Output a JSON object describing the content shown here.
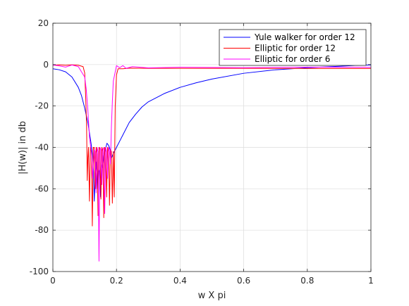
{
  "chart_data": {
    "type": "line",
    "xlabel": "w X pi",
    "ylabel": "|H(w)| in db",
    "xlim": [
      0,
      1
    ],
    "ylim": [
      -100,
      20
    ],
    "xticks": [
      "0",
      "0.2",
      "0.4",
      "0.6",
      "0.8",
      "1"
    ],
    "yticks": [
      "20",
      "0",
      "-20",
      "-40",
      "-60",
      "-80",
      "-100"
    ],
    "grid": true,
    "legend_position": "top-right",
    "series": [
      {
        "name": "Yule walker for order 12",
        "color": "#0000ff",
        "x": [
          0,
          0.02,
          0.04,
          0.06,
          0.08,
          0.09,
          0.1,
          0.11,
          0.115,
          0.12,
          0.125,
          0.128,
          0.13,
          0.133,
          0.136,
          0.14,
          0.143,
          0.146,
          0.15,
          0.153,
          0.156,
          0.16,
          0.165,
          0.17,
          0.175,
          0.18,
          0.185,
          0.19,
          0.2,
          0.21,
          0.22,
          0.24,
          0.26,
          0.28,
          0.3,
          0.35,
          0.4,
          0.45,
          0.5,
          0.6,
          0.7,
          0.8,
          0.9,
          0.95,
          1.0
        ],
        "y": [
          -2,
          -2.5,
          -3.5,
          -6,
          -11,
          -15,
          -21,
          -28,
          -33,
          -38,
          -44,
          -52,
          -66,
          -55,
          -47,
          -60,
          -50,
          -52,
          -64,
          -48,
          -50,
          -44,
          -41,
          -38,
          -39,
          -41,
          -45,
          -43,
          -40,
          -37,
          -34,
          -28,
          -24,
          -20.5,
          -18,
          -14,
          -11,
          -8.8,
          -7,
          -4.2,
          -2.5,
          -1.5,
          -0.8,
          -0.4,
          -0.2
        ]
      },
      {
        "name": "Elliptic for order 12",
        "color": "#ff0000",
        "x": [
          0,
          0.02,
          0.04,
          0.06,
          0.08,
          0.095,
          0.1,
          0.103,
          0.106,
          0.108,
          0.11,
          0.112,
          0.115,
          0.118,
          0.121,
          0.124,
          0.127,
          0.13,
          0.133,
          0.136,
          0.139,
          0.142,
          0.145,
          0.148,
          0.151,
          0.154,
          0.157,
          0.16,
          0.163,
          0.166,
          0.169,
          0.172,
          0.175,
          0.178,
          0.181,
          0.184,
          0.187,
          0.19,
          0.193,
          0.196,
          0.2,
          0.205,
          0.21,
          0.22,
          0.24,
          0.3,
          0.4,
          0.6,
          0.8,
          1.0
        ],
        "y": [
          -0.3,
          -0.1,
          -0.3,
          -0.1,
          -0.3,
          -1,
          -4,
          -15,
          -30,
          -56,
          -45,
          -40,
          -66,
          -40,
          -42,
          -78,
          -40,
          -40,
          -60,
          -40,
          -43,
          -73,
          -40,
          -41,
          -65,
          -40,
          -42,
          -74,
          -40,
          -41,
          -64,
          -40,
          -42,
          -68,
          -41,
          -42,
          -67,
          -42,
          -64,
          -20,
          -5,
          -2,
          -2,
          -2,
          -1.7,
          -1.8,
          -1.8,
          -1.8,
          -1.9,
          -1.9
        ]
      },
      {
        "name": "Elliptic for order 6",
        "color": "#ff00ff",
        "x": [
          0,
          0.02,
          0.04,
          0.06,
          0.08,
          0.1,
          0.105,
          0.11,
          0.115,
          0.12,
          0.125,
          0.13,
          0.133,
          0.136,
          0.139,
          0.142,
          0.145,
          0.148,
          0.151,
          0.154,
          0.157,
          0.16,
          0.163,
          0.166,
          0.169,
          0.172,
          0.175,
          0.178,
          0.181,
          0.184,
          0.187,
          0.19,
          0.2,
          0.21,
          0.22,
          0.23,
          0.25,
          0.3,
          0.4,
          0.6,
          0.8,
          1.0
        ],
        "y": [
          -0.2,
          -0.6,
          -1.2,
          -0.2,
          -1,
          -6,
          -12,
          -22,
          -35,
          -41,
          -55,
          -41,
          -42,
          -62,
          -40,
          -42,
          -95,
          -40,
          -41,
          -58,
          -41,
          -40,
          -72,
          -40,
          -42,
          -55,
          -40,
          -42,
          -48,
          -30,
          -18,
          -8,
          -0.5,
          -1.5,
          -0.5,
          -1.8,
          -1,
          -1.6,
          -1.3,
          -1.5,
          -1.2,
          -1.3
        ]
      }
    ]
  }
}
